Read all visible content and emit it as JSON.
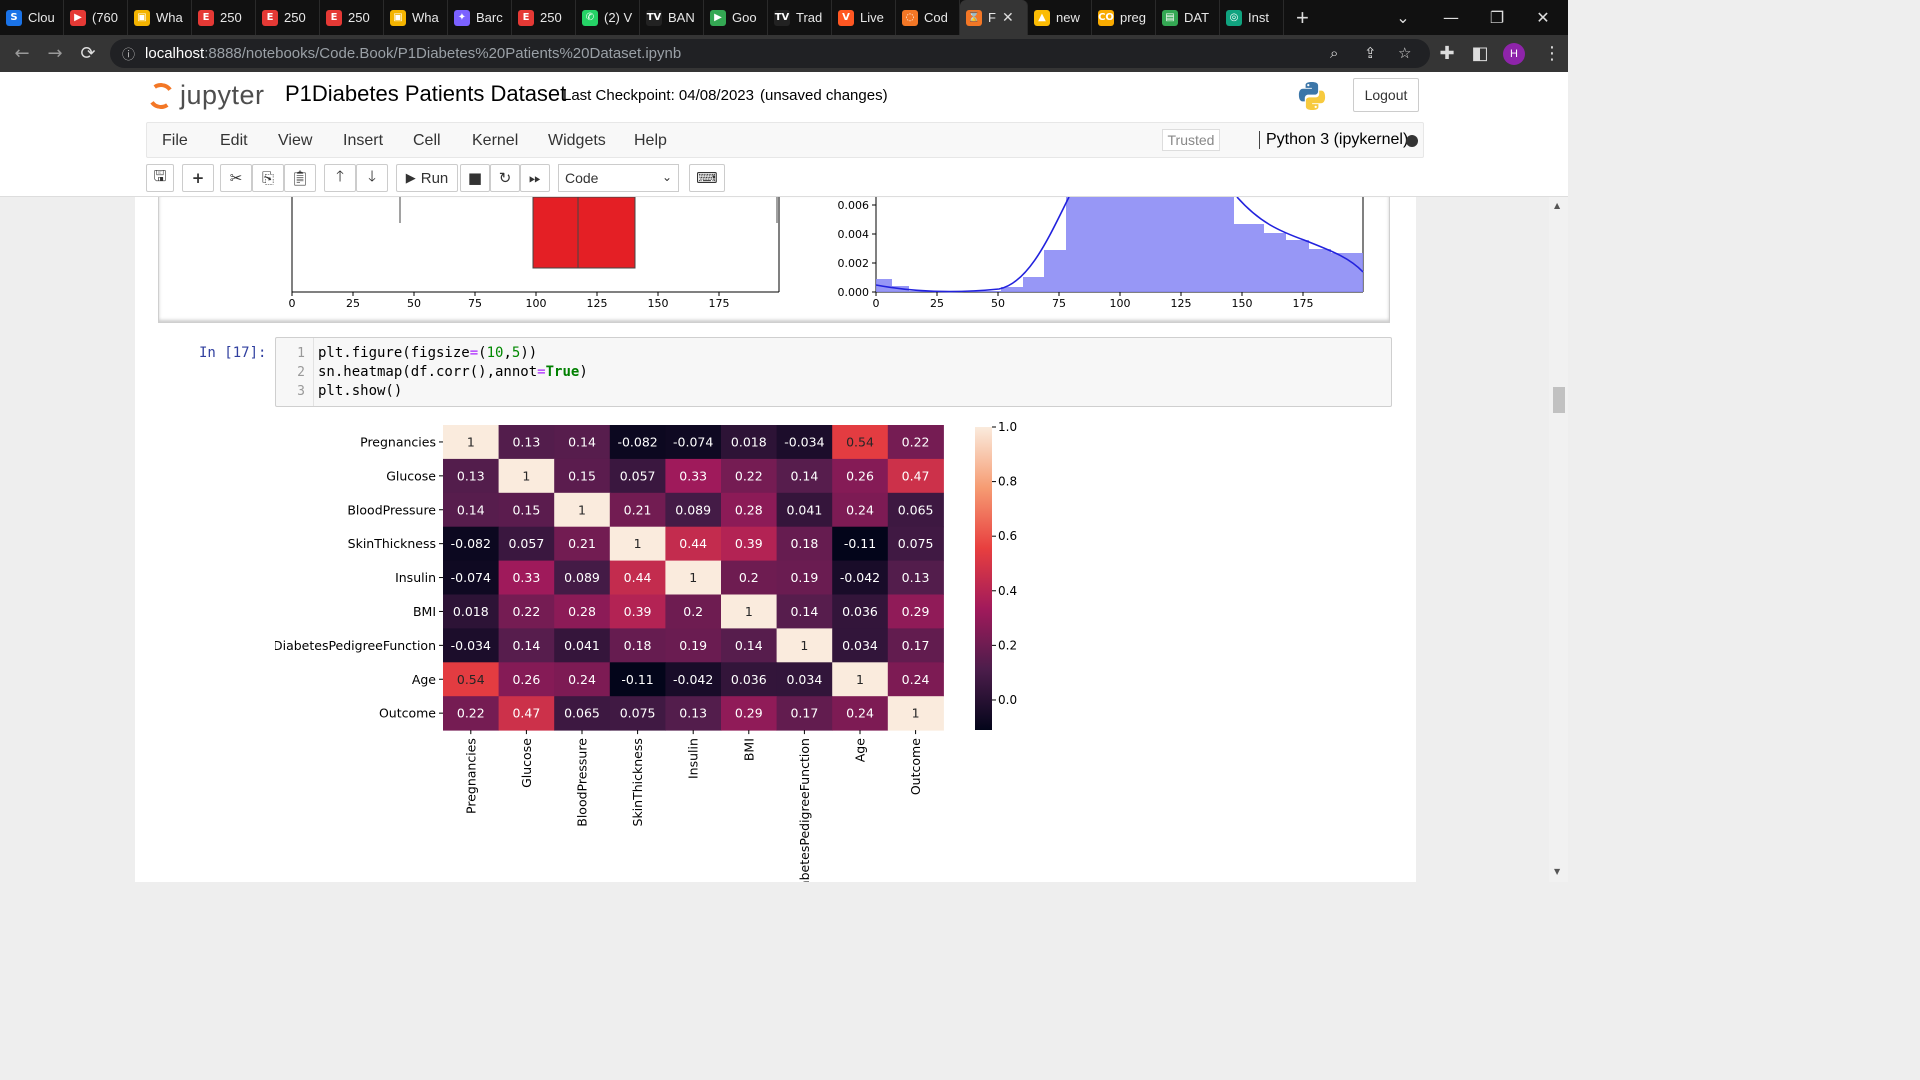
{
  "browser": {
    "tabs": [
      {
        "label": "Clou",
        "icon": "S",
        "color": "#1a73e8"
      },
      {
        "label": "(760",
        "icon": "▶",
        "color": "#e53935"
      },
      {
        "label": "Wha",
        "icon": "▣",
        "color": "#f4b400"
      },
      {
        "label": "250",
        "icon": "E",
        "color": "#e53935"
      },
      {
        "label": "250",
        "icon": "E",
        "color": "#e53935"
      },
      {
        "label": "250",
        "icon": "E",
        "color": "#e53935"
      },
      {
        "label": "Wha",
        "icon": "▣",
        "color": "#f4b400"
      },
      {
        "label": "Barc",
        "icon": "✦",
        "color": "#7b61ff"
      },
      {
        "label": "250",
        "icon": "E",
        "color": "#e53935"
      },
      {
        "label": "(2) V",
        "icon": "✆",
        "color": "#25d366"
      },
      {
        "label": "BAN",
        "icon": "TV",
        "color": "#222222"
      },
      {
        "label": "Goo",
        "icon": "▶",
        "color": "#34a853"
      },
      {
        "label": "Trad",
        "icon": "TV",
        "color": "#222222"
      },
      {
        "label": "Live",
        "icon": "V",
        "color": "#ff5722"
      },
      {
        "label": "Cod",
        "icon": "◌",
        "color": "#f37726"
      },
      {
        "label": "F",
        "icon": "⌛",
        "color": "#f37726"
      },
      {
        "label": "new",
        "icon": "▲",
        "color": "#fbbc04"
      },
      {
        "label": "preg",
        "icon": "CO",
        "color": "#f9ab00"
      },
      {
        "label": "DAT",
        "icon": "▤",
        "color": "#34a853"
      },
      {
        "label": "Inst",
        "icon": "◎",
        "color": "#10a37f"
      }
    ],
    "active_tab_index": 15,
    "url_host": "localhost",
    "url_path": ":8888/notebooks/Code.Book/P1Diabetes%20Patients%20Dataset.ipynb",
    "profile_initial": "H"
  },
  "jupyter": {
    "logo_text": "jupyter",
    "notebook_title": "P1Diabetes Patients Dataset",
    "checkpoint": "Last Checkpoint: 04/08/2023",
    "unsaved": "(unsaved changes)",
    "logout_label": "Logout",
    "menu": [
      "File",
      "Edit",
      "View",
      "Insert",
      "Cell",
      "Kernel",
      "Widgets",
      "Help"
    ],
    "trusted_label": "Trusted",
    "kernel_label": "Python 3 (ipykernel)",
    "run_label": "Run",
    "cell_type": "Code"
  },
  "cell": {
    "prompt": "In [17]:",
    "line_numbers": [
      "1",
      "2",
      "3"
    ]
  },
  "prev_output": {
    "left_ticks": [
      "0",
      "25",
      "50",
      "75",
      "100",
      "125",
      "150",
      "175"
    ],
    "right_xticks": [
      "0",
      "25",
      "50",
      "75",
      "100",
      "125",
      "150",
      "175"
    ],
    "right_yticks": [
      "0.006",
      "0.004",
      "0.002",
      "0.000"
    ]
  },
  "chart_data": {
    "type": "heatmap",
    "labels": [
      "Pregnancies",
      "Glucose",
      "BloodPressure",
      "SkinThickness",
      "Insulin",
      "BMI",
      "DiabetesPedigreeFunction",
      "Age",
      "Outcome"
    ],
    "annotations": [
      [
        "1",
        "0.13",
        "0.14",
        "-0.082",
        "-0.074",
        "0.018",
        "-0.034",
        "0.54",
        "0.22"
      ],
      [
        "0.13",
        "1",
        "0.15",
        "0.057",
        "0.33",
        "0.22",
        "0.14",
        "0.26",
        "0.47"
      ],
      [
        "0.14",
        "0.15",
        "1",
        "0.21",
        "0.089",
        "0.28",
        "0.041",
        "0.24",
        "0.065"
      ],
      [
        "-0.082",
        "0.057",
        "0.21",
        "1",
        "0.44",
        "0.39",
        "0.18",
        "-0.11",
        "0.075"
      ],
      [
        "-0.074",
        "0.33",
        "0.089",
        "0.44",
        "1",
        "0.2",
        "0.19",
        "-0.042",
        "0.13"
      ],
      [
        "0.018",
        "0.22",
        "0.28",
        "0.39",
        "0.2",
        "1",
        "0.14",
        "0.036",
        "0.29"
      ],
      [
        "-0.034",
        "0.14",
        "0.041",
        "0.18",
        "0.19",
        "0.14",
        "1",
        "0.034",
        "0.17"
      ],
      [
        "0.54",
        "0.26",
        "0.24",
        "-0.11",
        "-0.042",
        "0.036",
        "0.034",
        "1",
        "0.24"
      ],
      [
        "0.22",
        "0.47",
        "0.065",
        "0.075",
        "0.13",
        "0.29",
        "0.17",
        "0.24",
        "1"
      ]
    ],
    "colorbar_ticks": [
      "1.0",
      "0.8",
      "0.6",
      "0.4",
      "0.2",
      "0.0"
    ],
    "colorbar_range": [
      -0.11,
      1.0
    ],
    "colormap": [
      "#03051a",
      "#4c1d4b",
      "#a11a5b",
      "#e83f3f",
      "#f69c73",
      "#faebdd"
    ]
  }
}
